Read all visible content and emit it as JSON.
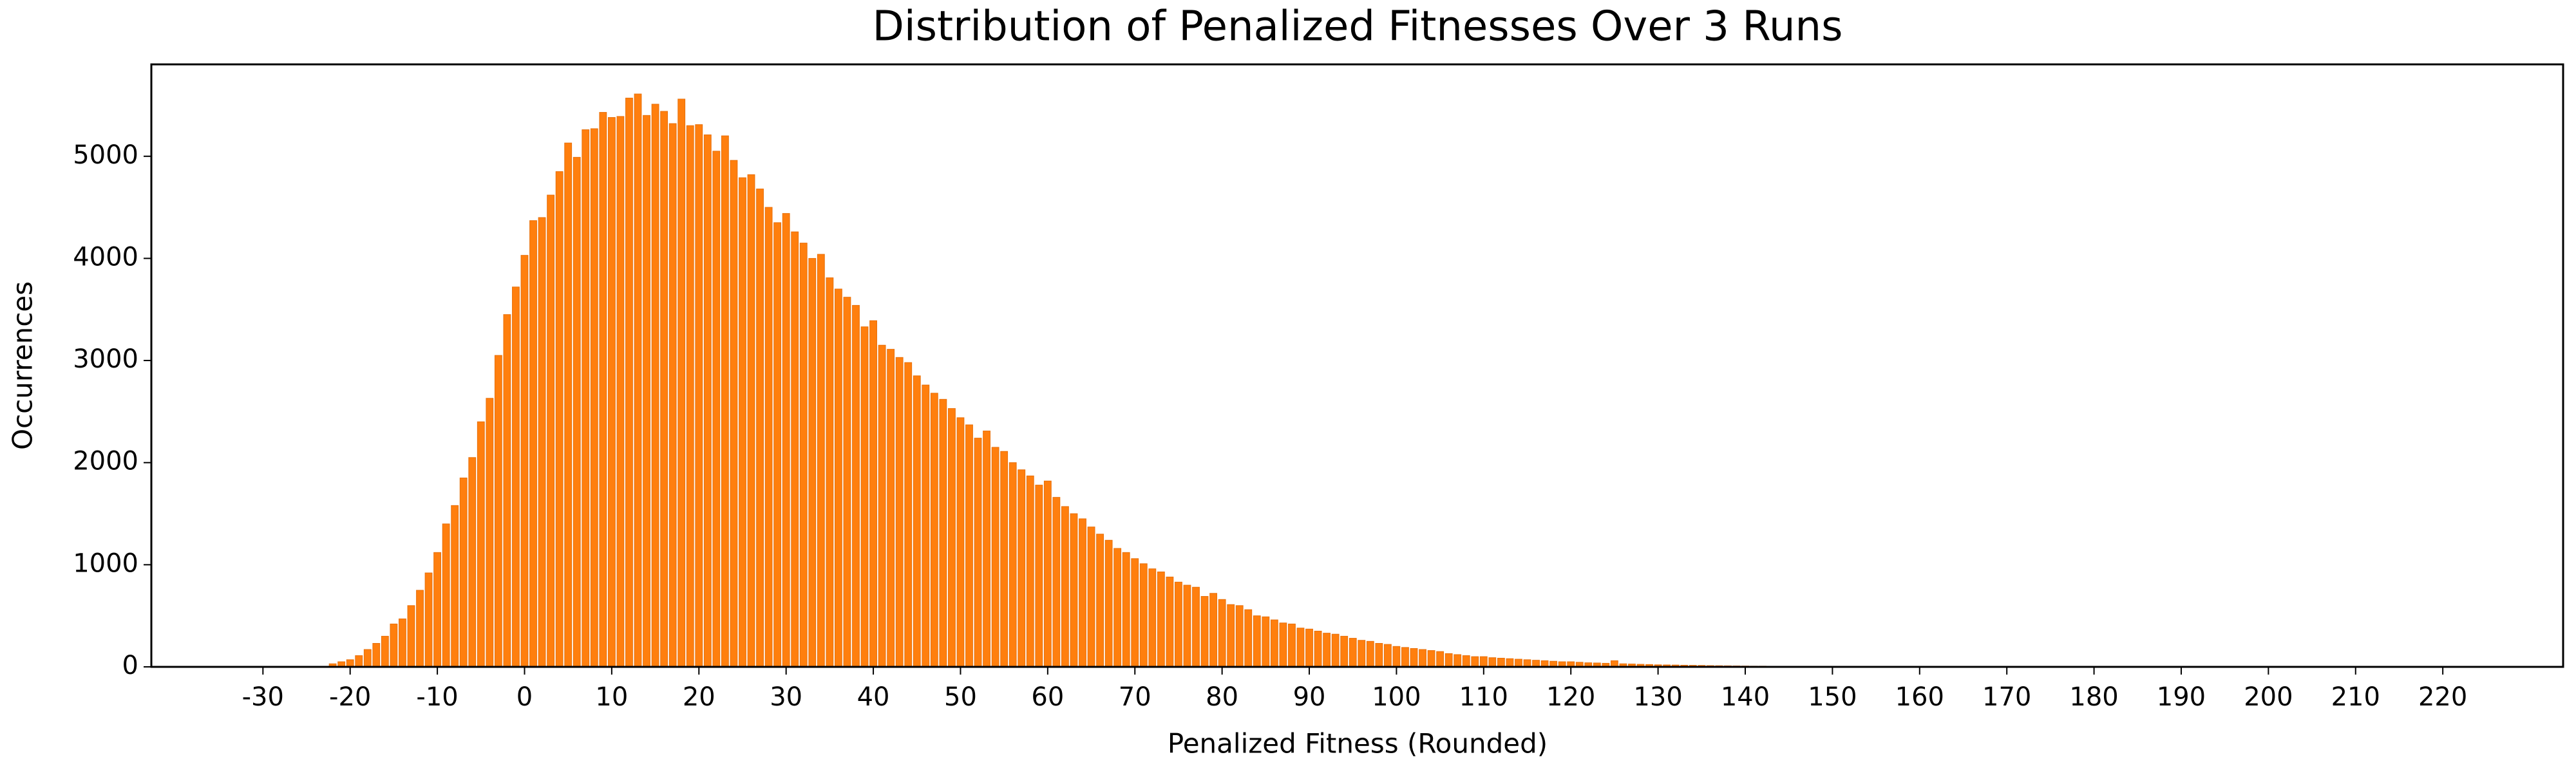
{
  "chart_data": {
    "type": "bar",
    "title": "Distribution of Penalized Fitnesses Over 3 Runs",
    "x_label": "Penalized Fitness (Rounded)",
    "y_label": "Occurrences",
    "color": "#ff7f0e",
    "x": [
      -22,
      -21,
      -20,
      -19,
      -18,
      -17,
      -16,
      -15,
      -14,
      -13,
      -12,
      -11,
      -10,
      -9,
      -8,
      -7,
      -6,
      -5,
      -4,
      -3,
      -2,
      -1,
      0,
      1,
      2,
      3,
      4,
      5,
      6,
      7,
      8,
      9,
      10,
      11,
      12,
      13,
      14,
      15,
      16,
      17,
      18,
      19,
      20,
      21,
      22,
      23,
      24,
      25,
      26,
      27,
      28,
      29,
      30,
      31,
      32,
      33,
      34,
      35,
      36,
      37,
      38,
      39,
      40,
      41,
      42,
      43,
      44,
      45,
      46,
      47,
      48,
      49,
      50,
      51,
      52,
      53,
      54,
      55,
      56,
      57,
      58,
      59,
      60,
      61,
      62,
      63,
      64,
      65,
      66,
      67,
      68,
      69,
      70,
      71,
      72,
      73,
      74,
      75,
      76,
      77,
      78,
      79,
      80,
      81,
      82,
      83,
      84,
      85,
      86,
      87,
      88,
      89,
      90,
      91,
      92,
      93,
      94,
      95,
      96,
      97,
      98,
      99,
      100,
      101,
      102,
      103,
      104,
      105,
      106,
      107,
      108,
      109,
      110,
      111,
      112,
      113,
      114,
      115,
      116,
      117,
      118,
      119,
      120,
      121,
      122,
      123,
      124,
      125,
      126,
      127,
      128,
      129,
      130,
      131,
      132,
      133,
      134,
      135,
      136,
      137,
      138,
      139,
      140,
      141,
      142,
      143,
      144,
      145,
      146,
      147,
      148,
      149,
      150,
      151,
      152,
      153,
      154,
      155
    ],
    "values": [
      30,
      50,
      70,
      110,
      170,
      230,
      300,
      420,
      470,
      600,
      750,
      920,
      1120,
      1400,
      1580,
      1850,
      2050,
      2400,
      2630,
      3050,
      3450,
      3720,
      4030,
      4370,
      4400,
      4620,
      4850,
      5130,
      4990,
      5260,
      5270,
      5430,
      5380,
      5390,
      5570,
      5610,
      5400,
      5510,
      5440,
      5320,
      5560,
      5300,
      5310,
      5210,
      5050,
      5200,
      4960,
      4790,
      4820,
      4680,
      4500,
      4350,
      4440,
      4260,
      4150,
      4000,
      4040,
      3810,
      3700,
      3620,
      3540,
      3330,
      3390,
      3150,
      3110,
      3030,
      2980,
      2850,
      2760,
      2680,
      2620,
      2530,
      2440,
      2370,
      2240,
      2310,
      2150,
      2110,
      2000,
      1930,
      1870,
      1780,
      1820,
      1660,
      1570,
      1500,
      1450,
      1370,
      1300,
      1240,
      1160,
      1120,
      1060,
      1010,
      960,
      930,
      880,
      830,
      800,
      780,
      690,
      720,
      660,
      610,
      600,
      560,
      500,
      490,
      460,
      430,
      420,
      380,
      370,
      350,
      330,
      320,
      300,
      280,
      260,
      250,
      230,
      220,
      200,
      190,
      180,
      170,
      160,
      150,
      130,
      120,
      110,
      100,
      100,
      90,
      85,
      80,
      75,
      70,
      65,
      60,
      55,
      50,
      50,
      45,
      40,
      38,
      35,
      60,
      30,
      28,
      25,
      23,
      20,
      19,
      18,
      16,
      15,
      14,
      12,
      11,
      10,
      9,
      8,
      7,
      7,
      6,
      5,
      5,
      4,
      4,
      3,
      3,
      2,
      2,
      2,
      1,
      1,
      1
    ],
    "xlim": [
      -42.8,
      233.8
    ],
    "xticks": [
      -30,
      -20,
      -10,
      0,
      10,
      20,
      30,
      40,
      50,
      60,
      70,
      80,
      90,
      100,
      110,
      120,
      130,
      140,
      150,
      160,
      170,
      180,
      190,
      200,
      210,
      220
    ],
    "ylim": [
      0,
      5900
    ],
    "yticks": [
      0,
      1000,
      2000,
      3000,
      4000,
      5000
    ]
  }
}
